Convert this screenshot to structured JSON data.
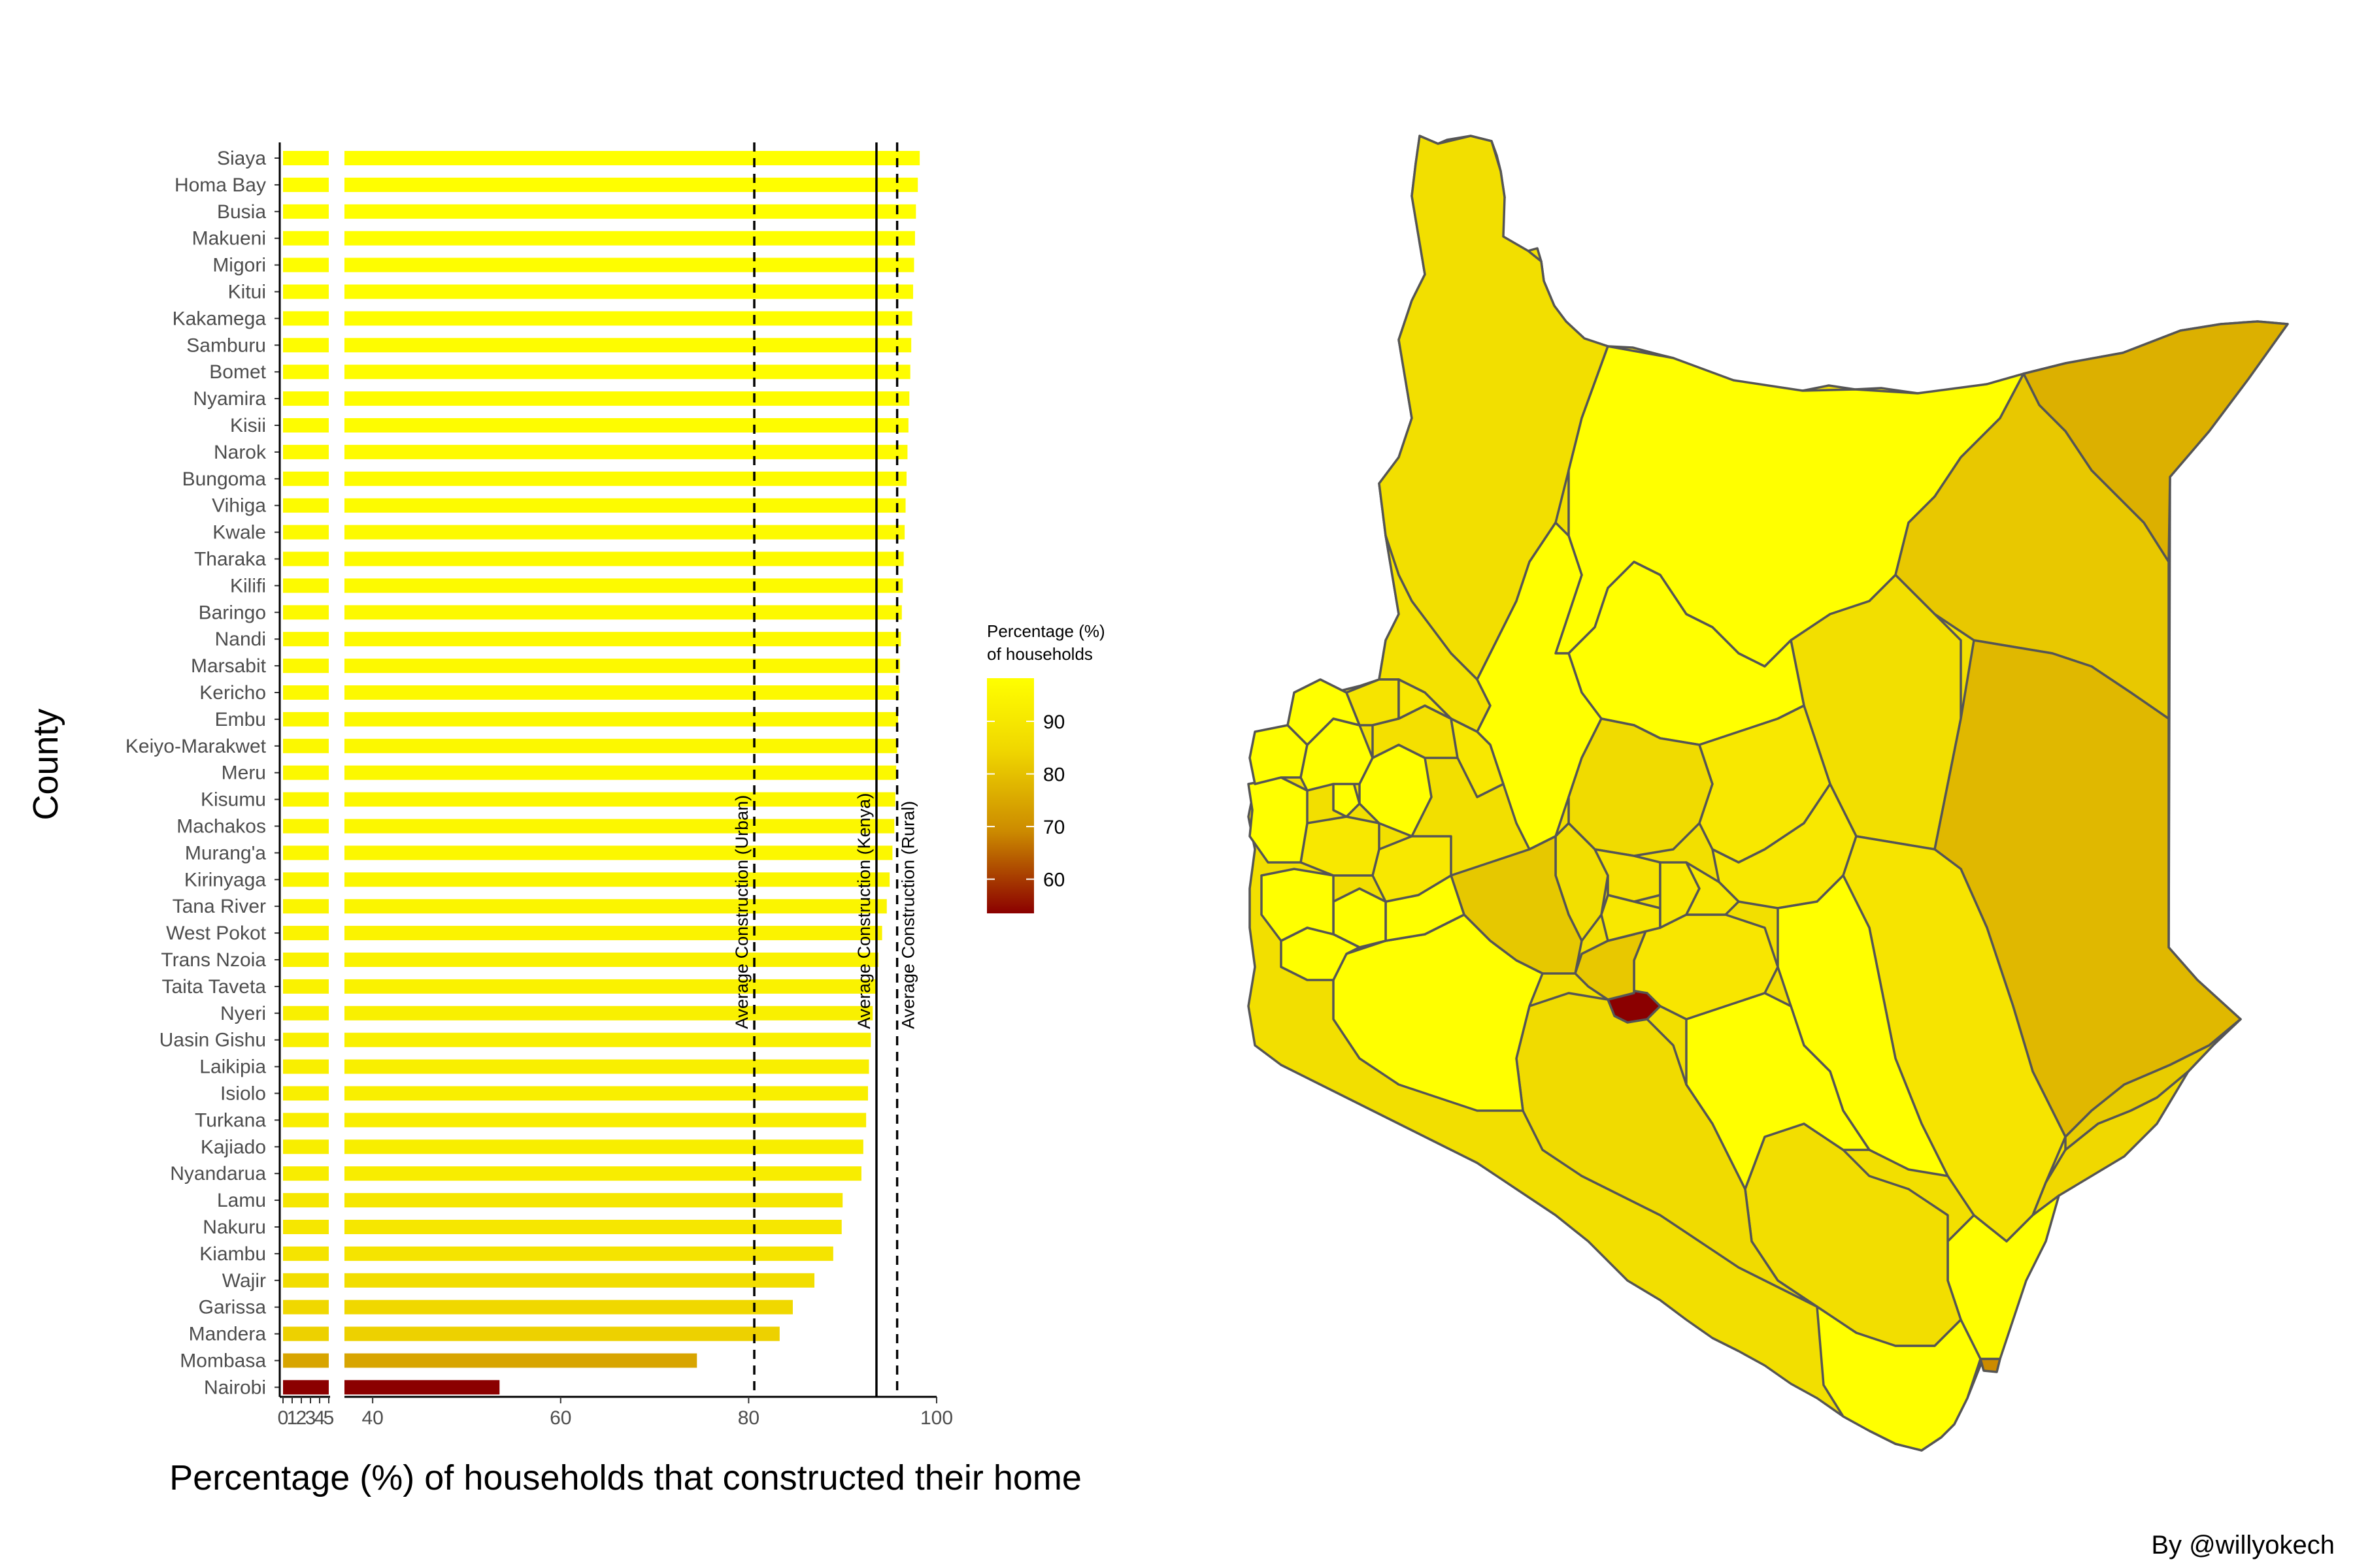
{
  "chart_data": [
    {
      "type": "bar",
      "orientation": "horizontal",
      "title": "",
      "xlabel": "Percentage (%) of households that constructed their home",
      "ylabel": "County",
      "axis_break": {
        "before": [
          0,
          5
        ],
        "after": [
          37,
          100
        ]
      },
      "x_ticks_before": [
        "0",
        "1",
        "2",
        "3",
        "4",
        "5"
      ],
      "x_ticks_after": [
        "40",
        "60",
        "80",
        "100"
      ],
      "categories": [
        "Siaya",
        "Homa Bay",
        "Busia",
        "Makueni",
        "Migori",
        "Kitui",
        "Kakamega",
        "Samburu",
        "Bomet",
        "Nyamira",
        "Kisii",
        "Narok",
        "Bungoma",
        "Vihiga",
        "Kwale",
        "Tharaka",
        "Kilifi",
        "Baringo",
        "Nandi",
        "Marsabit",
        "Kericho",
        "Embu",
        "Keiyo-Marakwet",
        "Meru",
        "Kisumu",
        "Machakos",
        "Murang'a",
        "Kirinyaga",
        "Tana River",
        "West Pokot",
        "Trans Nzoia",
        "Taita Taveta",
        "Nyeri",
        "Uasin Gishu",
        "Laikipia",
        "Isiolo",
        "Turkana",
        "Kajiado",
        "Nyandarua",
        "Lamu",
        "Nakuru",
        "Kiambu",
        "Wajir",
        "Garissa",
        "Mandera",
        "Mombasa",
        "Nairobi"
      ],
      "values": [
        98.2,
        98.0,
        97.8,
        97.7,
        97.6,
        97.5,
        97.4,
        97.3,
        97.2,
        97.1,
        97.0,
        96.9,
        96.8,
        96.7,
        96.6,
        96.5,
        96.4,
        96.3,
        96.2,
        96.1,
        96.0,
        95.9,
        95.8,
        95.7,
        95.6,
        95.5,
        95.3,
        95.0,
        94.7,
        94.2,
        93.8,
        93.6,
        93.2,
        93.0,
        92.8,
        92.7,
        92.5,
        92.2,
        92.0,
        90.0,
        89.9,
        89.0,
        87.0,
        84.7,
        83.3,
        74.5,
        53.5
      ],
      "reference_lines": [
        {
          "label": "Average Construction (Urban)",
          "value": 80.6,
          "style": "dashed"
        },
        {
          "label": "Average Construction (Kenya)",
          "value": 93.6,
          "style": "solid"
        },
        {
          "label": "Average Construction (Rural)",
          "value": 95.8,
          "style": "dashed"
        }
      ],
      "legend": {
        "title_line1": "Percentage (%)",
        "title_line2": "of households",
        "ticks": [
          "60",
          "70",
          "80",
          "90"
        ],
        "range": [
          53.5,
          98.2
        ],
        "colors": [
          "#8b0000",
          "#cc8b00",
          "#f0d800",
          "#ffff00"
        ]
      },
      "grid": false
    },
    {
      "type": "choropleth",
      "region": "Kenya counties",
      "values_from": "same county percentages as bar chart"
    }
  ],
  "credit": "By @willyokech"
}
